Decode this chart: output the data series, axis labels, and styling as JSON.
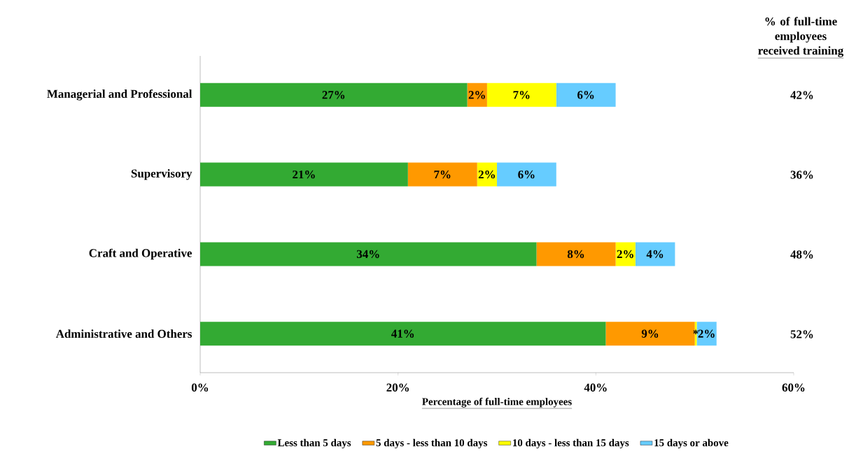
{
  "chart_data": {
    "type": "bar",
    "orientation": "horizontal",
    "stacked": true,
    "categories": [
      "Managerial and Professional",
      "Supervisory",
      "Craft and Operative",
      "Administrative and Others"
    ],
    "series": [
      {
        "name": "Less than 5 days",
        "color": "#33aa33",
        "values": [
          27,
          21,
          34,
          41
        ],
        "value_labels": [
          "27%",
          "21%",
          "34%",
          "41%"
        ]
      },
      {
        "name": "5 days - less than 10 days",
        "color": "#ff9900",
        "values": [
          2,
          7,
          8,
          9
        ],
        "value_labels": [
          "2%",
          "7%",
          "8%",
          "9%"
        ]
      },
      {
        "name": "10 days - less than 15 days",
        "color": "#ffff00",
        "values": [
          7,
          2,
          2,
          0.2
        ],
        "value_labels": [
          "7%",
          "2%",
          "2%",
          "*"
        ]
      },
      {
        "name": "15 days or above",
        "color": "#66ccff",
        "values": [
          6,
          6,
          4,
          2
        ],
        "value_labels": [
          "6%",
          "6%",
          "4%",
          "2%"
        ]
      }
    ],
    "xlim": [
      0,
      60
    ],
    "xticks": [
      {
        "value": 0,
        "label": "0%"
      },
      {
        "value": 20,
        "label": "20%"
      },
      {
        "value": 40,
        "label": "40%"
      },
      {
        "value": 60,
        "label": "60%"
      }
    ],
    "xlabel": "Percentage of full-time employees",
    "annotations": [
      "% of full-time employees",
      "received training",
      "42%",
      "36%",
      "48%",
      "52%"
    ],
    "legend": "bottom",
    "grid": false
  }
}
